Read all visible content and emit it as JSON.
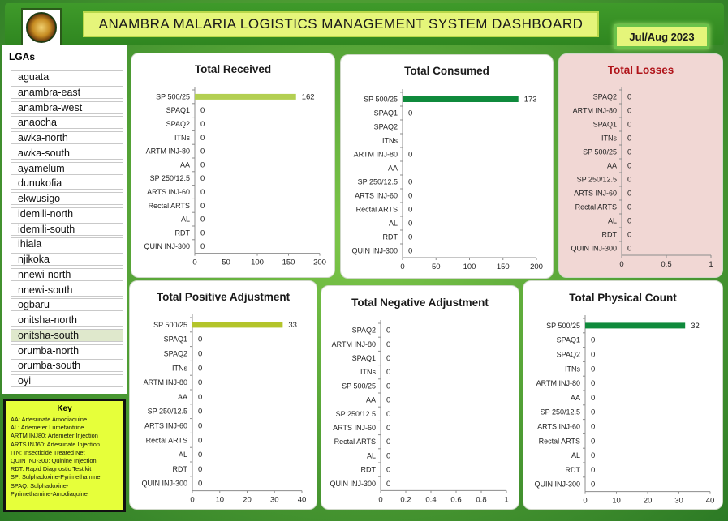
{
  "header": {
    "logo_name": "anambra-state-seal",
    "title": "ANAMBRA MALARIA LOGISTICS MANAGEMENT SYSTEM DASHBOARD",
    "period": "Jul/Aug 2023"
  },
  "lgas": {
    "label": "LGAs",
    "selected": "onitsha-south",
    "items": [
      "aguata",
      "anambra-east",
      "anambra-west",
      "anaocha",
      "awka-north",
      "awka-south",
      "ayamelum",
      "dunukofia",
      "ekwusigo",
      "idemili-north",
      "idemili-south",
      "ihiala",
      "njikoka",
      "nnewi-north",
      "nnewi-south",
      "ogbaru",
      "onitsha-north",
      "onitsha-south",
      "orumba-north",
      "orumba-south",
      "oyi"
    ]
  },
  "key": {
    "title": "Key",
    "lines": [
      "AA: Artesunate Amodiaquine",
      "AL: Artemeter Lumefantrine",
      "ARTM INJ80: Artemeter Injection",
      "ARTS INJ60: Artesunate Injection",
      "ITN: Insecticide Treated Net",
      "QUIN INJ-300: Quinine Injection",
      "RDT: Rapid Diagnostic Test kit",
      "SP: Sulphadoxine-Pyrimethamine",
      "SPAQ: Sulphadoxine-",
      "Pyrimethamine-Amodiaquine"
    ]
  },
  "colors": {
    "received_bar": "#b3cf52",
    "consumed_bar": "#0f8a3c",
    "positive_bar": "#b3c42a",
    "physical_bar": "#0f8a3c",
    "loss_title": "#b0141a"
  },
  "chart_data": [
    {
      "id": "total-received",
      "type": "bar",
      "orientation": "horizontal",
      "title": "Total Received",
      "categories": [
        "SP 500/25",
        "SPAQ1",
        "SPAQ2",
        "ITNs",
        "ARTM INJ-80",
        "AA",
        "SP 250/12.5",
        "ARTS INJ-60",
        "Rectal ARTS",
        "AL",
        "RDT",
        "QUIN INJ-300"
      ],
      "values": [
        162,
        0,
        0,
        0,
        0,
        0,
        0,
        0,
        0,
        0,
        0,
        0
      ],
      "value_labels": [
        "162",
        "0",
        "0",
        "0",
        "0",
        "0",
        "0",
        "0",
        "0",
        "0",
        "0",
        "0"
      ],
      "xlim": [
        0,
        200
      ],
      "xticks": [
        "0",
        "50",
        "100",
        "150",
        "200"
      ],
      "bar_color": "#b3cf52"
    },
    {
      "id": "total-consumed",
      "type": "bar",
      "orientation": "horizontal",
      "title": "Total Consumed",
      "categories": [
        "SP 500/25",
        "SPAQ1",
        "SPAQ2",
        "ITNs",
        "ARTM INJ-80",
        "AA",
        "SP 250/12.5",
        "ARTS INJ-60",
        "Rectal ARTS",
        "AL",
        "RDT",
        "QUIN INJ-300"
      ],
      "values": [
        173,
        0,
        null,
        null,
        0,
        null,
        0,
        0,
        0,
        0,
        0,
        0
      ],
      "value_labels": [
        "173",
        "0",
        "",
        "",
        "0",
        "",
        "0",
        "0",
        "0",
        "0",
        "0",
        "0"
      ],
      "xlim": [
        0,
        200
      ],
      "xticks": [
        "0",
        "50",
        "100",
        "150",
        "200"
      ],
      "bar_color": "#0f8a3c"
    },
    {
      "id": "total-losses",
      "type": "bar",
      "orientation": "horizontal",
      "title": "Total Losses",
      "categories": [
        "SPAQ2",
        "ARTM INJ-80",
        "SPAQ1",
        "ITNs",
        "SP 500/25",
        "AA",
        "SP 250/12.5",
        "ARTS INJ-60",
        "Rectal ARTS",
        "AL",
        "RDT",
        "QUIN INJ-300"
      ],
      "values": [
        0,
        0,
        0,
        0,
        0,
        0,
        0,
        0,
        0,
        0,
        0,
        0
      ],
      "value_labels": [
        "0",
        "0",
        "0",
        "0",
        "0",
        "0",
        "0",
        "0",
        "0",
        "0",
        "0",
        "0"
      ],
      "xlim": [
        0,
        1
      ],
      "xticks": [
        "0",
        "0.5",
        "1"
      ],
      "bar_color": "#c0504d"
    },
    {
      "id": "total-positive-adjustment",
      "type": "bar",
      "orientation": "horizontal",
      "title": "Total Positive Adjustment",
      "categories": [
        "SP 500/25",
        "SPAQ1",
        "SPAQ2",
        "ITNs",
        "ARTM INJ-80",
        "AA",
        "SP 250/12.5",
        "ARTS INJ-60",
        "Rectal ARTS",
        "AL",
        "RDT",
        "QUIN INJ-300"
      ],
      "values": [
        33,
        0,
        0,
        0,
        0,
        0,
        0,
        0,
        0,
        0,
        0,
        0
      ],
      "value_labels": [
        "33",
        "0",
        "0",
        "0",
        "0",
        "0",
        "0",
        "0",
        "0",
        "0",
        "0",
        "0"
      ],
      "xlim": [
        0,
        40
      ],
      "xticks": [
        "0",
        "10",
        "20",
        "30",
        "40"
      ],
      "bar_color": "#b3c42a"
    },
    {
      "id": "total-negative-adjustment",
      "type": "bar",
      "orientation": "horizontal",
      "title": "Total Negative Adjustment",
      "categories": [
        "SPAQ2",
        "ARTM INJ-80",
        "SPAQ1",
        "ITNs",
        "SP 500/25",
        "AA",
        "SP 250/12.5",
        "ARTS INJ-60",
        "Rectal ARTS",
        "AL",
        "RDT",
        "QUIN INJ-300"
      ],
      "values": [
        0,
        0,
        0,
        0,
        0,
        0,
        0,
        0,
        0,
        0,
        0,
        0
      ],
      "value_labels": [
        "0",
        "0",
        "0",
        "0",
        "0",
        "0",
        "0",
        "0",
        "0",
        "0",
        "0",
        "0"
      ],
      "xlim": [
        0,
        1
      ],
      "xticks": [
        "0",
        "0.2",
        "0.4",
        "0.6",
        "0.8",
        "1"
      ],
      "bar_color": "#4f81bd"
    },
    {
      "id": "total-physical-count",
      "type": "bar",
      "orientation": "horizontal",
      "title": "Total Physical Count",
      "categories": [
        "SP 500/25",
        "SPAQ1",
        "SPAQ2",
        "ITNs",
        "ARTM INJ-80",
        "AA",
        "SP 250/12.5",
        "ARTS INJ-60",
        "Rectal ARTS",
        "AL",
        "RDT",
        "QUIN INJ-300"
      ],
      "values": [
        32,
        0,
        0,
        0,
        0,
        0,
        0,
        0,
        0,
        0,
        0,
        0
      ],
      "value_labels": [
        "32",
        "0",
        "0",
        "0",
        "0",
        "0",
        "0",
        "0",
        "0",
        "0",
        "0",
        "0"
      ],
      "xlim": [
        0,
        40
      ],
      "xticks": [
        "0",
        "10",
        "20",
        "30",
        "40"
      ],
      "bar_color": "#0f8a3c"
    }
  ]
}
